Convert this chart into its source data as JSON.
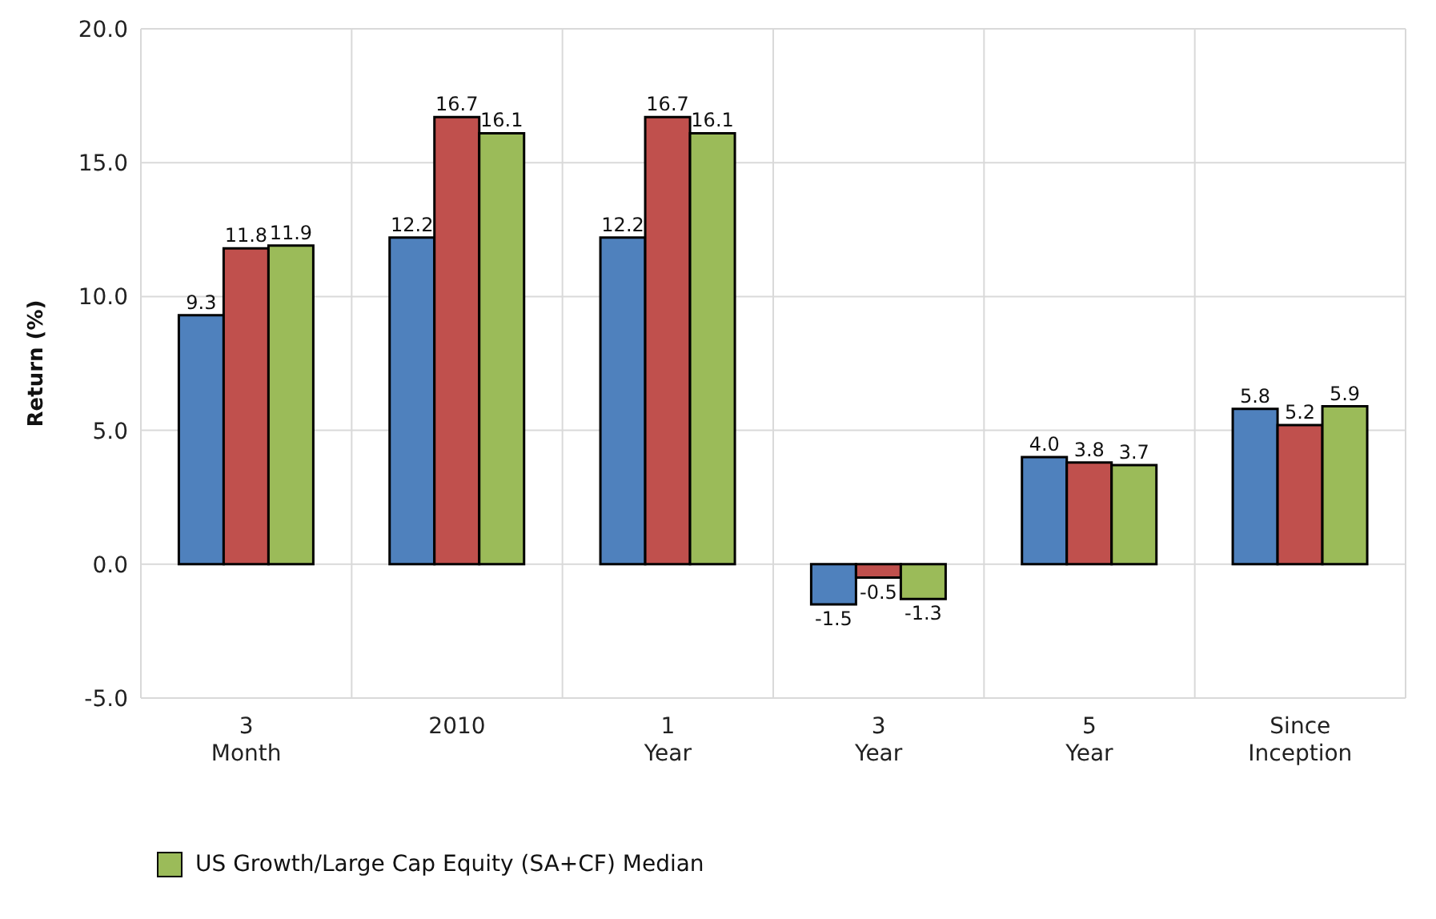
{
  "chart_data": {
    "type": "bar",
    "ylabel": "Return (%)",
    "categories": [
      "3\nMonth",
      "2010",
      "1\nYear",
      "3\nYear",
      "5\nYear",
      "Since\nInception"
    ],
    "series": [
      {
        "color": "#4f81bd",
        "values": [
          9.3,
          12.2,
          12.2,
          -1.5,
          4.0,
          5.8
        ],
        "value_labels": [
          "9.3",
          "12.2",
          "12.2",
          "-1.5",
          "4.0",
          "5.8"
        ]
      },
      {
        "color": "#c0504d",
        "values": [
          11.8,
          16.7,
          16.7,
          -0.5,
          3.8,
          5.2
        ],
        "value_labels": [
          "11.8",
          "16.7",
          "16.7",
          "-0.5",
          "3.8",
          "5.2"
        ]
      },
      {
        "name": "US Growth/Large Cap Equity (SA+CF) Median",
        "color": "#9bbb59",
        "values": [
          11.9,
          16.1,
          16.1,
          -1.3,
          3.7,
          5.9
        ],
        "value_labels": [
          "11.9",
          "16.1",
          "16.1",
          "-1.3",
          "3.7",
          "5.9"
        ]
      }
    ],
    "ylim": [
      -5,
      20
    ],
    "yticks": [
      {
        "value": -5,
        "label": "-5.0"
      },
      {
        "value": 0,
        "label": "0.0"
      },
      {
        "value": 5,
        "label": "5.0"
      },
      {
        "value": 10,
        "label": "10.0"
      },
      {
        "value": 15,
        "label": "15.0"
      },
      {
        "value": 20,
        "label": "20.0"
      }
    ],
    "grid": true,
    "legend": "bottom"
  }
}
